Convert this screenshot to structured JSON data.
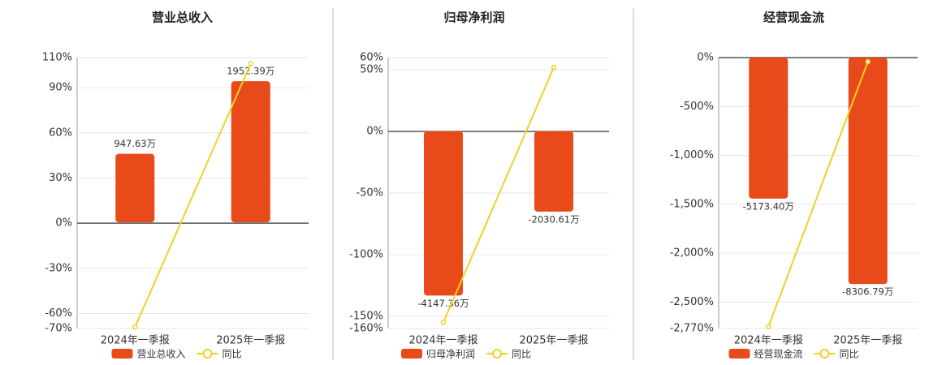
{
  "chart_data": [
    {
      "type": "bar",
      "title": "营业总收入",
      "categories": [
        "2024年一季报",
        "2025年一季报"
      ],
      "series": [
        {
          "name": "营业总收入",
          "color": "#e84a1a",
          "axis": "y2",
          "values": [
            947.63,
            1952.39
          ],
          "value_labels": [
            "947.63万",
            "1952.39万"
          ]
        },
        {
          "name": "同比",
          "type": "line",
          "color": "#f2d027",
          "values": [
            -69,
            106
          ]
        }
      ],
      "ylim": [
        -70,
        110
      ],
      "yticks": [
        {
          "value": 110,
          "label": "110%"
        },
        {
          "value": 90,
          "label": "90%"
        },
        {
          "value": 60,
          "label": "60%"
        },
        {
          "value": 30,
          "label": "30%"
        },
        {
          "value": 0,
          "label": "0%"
        },
        {
          "value": -30,
          "label": "-30%"
        },
        {
          "value": -60,
          "label": "-60%"
        },
        {
          "value": -70,
          "label": "-70%"
        }
      ],
      "y2lim": [
        -1470,
        2280
      ],
      "grid": true
    },
    {
      "type": "bar",
      "title": "归母净利润",
      "categories": [
        "2024年一季报",
        "2025年一季报"
      ],
      "series": [
        {
          "name": "归母净利润",
          "color": "#e84a1a",
          "axis": "y2",
          "values": [
            -4147.36,
            -2030.61
          ],
          "value_labels": [
            "-4147.36万",
            "-2030.61万"
          ]
        },
        {
          "name": "同比",
          "type": "line",
          "color": "#f2d027",
          "values": [
            -155,
            52
          ]
        }
      ],
      "ylim": [
        -160,
        60
      ],
      "yticks": [
        {
          "value": 60,
          "label": "60%"
        },
        {
          "value": 50,
          "label": "50%"
        },
        {
          "value": 0,
          "label": "0%"
        },
        {
          "value": -50,
          "label": "-50%"
        },
        {
          "value": -100,
          "label": "-100%"
        },
        {
          "value": -150,
          "label": "-150%"
        },
        {
          "value": -160,
          "label": "-160%"
        }
      ],
      "y2lim": [
        -4980,
        1857
      ],
      "grid": true
    },
    {
      "type": "bar",
      "title": "经营现金流",
      "categories": [
        "2024年一季报",
        "2025年一季报"
      ],
      "series": [
        {
          "name": "经营现金流",
          "color": "#e84a1a",
          "axis": "y2",
          "values": [
            -5173.4,
            -8306.79
          ],
          "value_labels": [
            "-5173.40万",
            "-8306.79万"
          ]
        },
        {
          "name": "同比",
          "type": "line",
          "color": "#f2d027",
          "values": [
            -2753,
            -41
          ]
        }
      ],
      "ylim": [
        -2770,
        0
      ],
      "yticks": [
        {
          "value": 0,
          "label": "0%"
        },
        {
          "value": -500,
          "label": "-500%"
        },
        {
          "value": -1000,
          "label": "-1,000%"
        },
        {
          "value": -1500,
          "label": "-1,500%"
        },
        {
          "value": -2000,
          "label": "-2,000%"
        },
        {
          "value": -2500,
          "label": "-2,500%"
        },
        {
          "value": -2770,
          "label": "-2,770%"
        }
      ],
      "y2lim": [
        -9940,
        0
      ],
      "grid": true
    }
  ]
}
